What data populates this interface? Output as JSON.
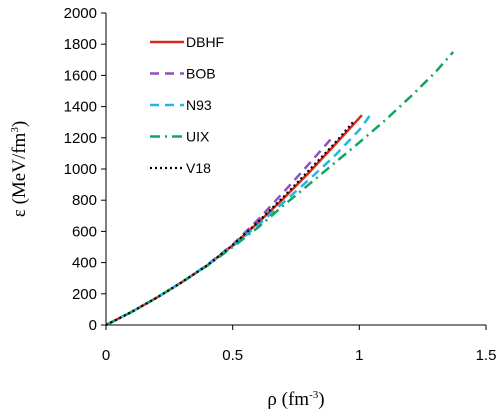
{
  "chart_data": {
    "type": "line",
    "xlabel": "ρ (fm",
    "xlabel_sup": "-3",
    "xlabel_close": ")",
    "ylabel": "ε (MeV/fm",
    "ylabel_sup": "3",
    "ylabel_close": ")",
    "xlim": [
      0,
      1.5
    ],
    "ylim": [
      0,
      2000
    ],
    "xticks": [
      0,
      0.5,
      1,
      1.5
    ],
    "xtick_labels": [
      "0",
      "0.5",
      "1",
      "1.5"
    ],
    "yticks": [
      0,
      200,
      400,
      600,
      800,
      1000,
      1200,
      1400,
      1600,
      1800,
      2000
    ],
    "ytick_labels": [
      "0",
      "200",
      "400",
      "600",
      "800",
      "1000",
      "1200",
      "1400",
      "1600",
      "1800",
      "2000"
    ],
    "grid": false,
    "legend_position": "top-left",
    "series": [
      {
        "name": "DBHF",
        "color": "#d62a1e",
        "dash": "solid",
        "x": [
          0,
          0.1,
          0.2,
          0.3,
          0.4,
          0.5,
          0.6,
          0.7,
          0.8,
          0.9,
          1.01
        ],
        "y": [
          0,
          83,
          175,
          275,
          383,
          510,
          655,
          810,
          975,
          1150,
          1345
        ]
      },
      {
        "name": "BOB",
        "color": "#8e4fc2",
        "dash": "dash",
        "x": [
          0,
          0.1,
          0.2,
          0.3,
          0.4,
          0.5,
          0.6,
          0.7,
          0.8,
          0.9
        ],
        "y": [
          0,
          83,
          175,
          275,
          385,
          515,
          675,
          850,
          1030,
          1215
        ]
      },
      {
        "name": "N93",
        "color": "#1fb7e6",
        "dash": "dash",
        "x": [
          0,
          0.1,
          0.2,
          0.3,
          0.4,
          0.5,
          0.6,
          0.7,
          0.8,
          0.9,
          1.0,
          1.04
        ],
        "y": [
          0,
          83,
          175,
          275,
          382,
          505,
          640,
          785,
          930,
          1080,
          1250,
          1340
        ]
      },
      {
        "name": "UIX",
        "color": "#12a560",
        "dash": "dashdot",
        "x": [
          0,
          0.1,
          0.2,
          0.3,
          0.4,
          0.5,
          0.6,
          0.7,
          0.8,
          0.9,
          1.0,
          1.1,
          1.2,
          1.3,
          1.37
        ],
        "y": [
          0,
          83,
          175,
          275,
          380,
          500,
          625,
          765,
          900,
          1035,
          1170,
          1310,
          1460,
          1620,
          1750
        ]
      },
      {
        "name": "V18",
        "color": "#000000",
        "dash": "dot",
        "x": [
          0,
          0.1,
          0.2,
          0.3,
          0.4,
          0.5,
          0.6,
          0.7,
          0.8,
          0.9,
          0.98
        ],
        "y": [
          0,
          83,
          175,
          275,
          383,
          512,
          660,
          820,
          990,
          1160,
          1310
        ]
      }
    ]
  }
}
